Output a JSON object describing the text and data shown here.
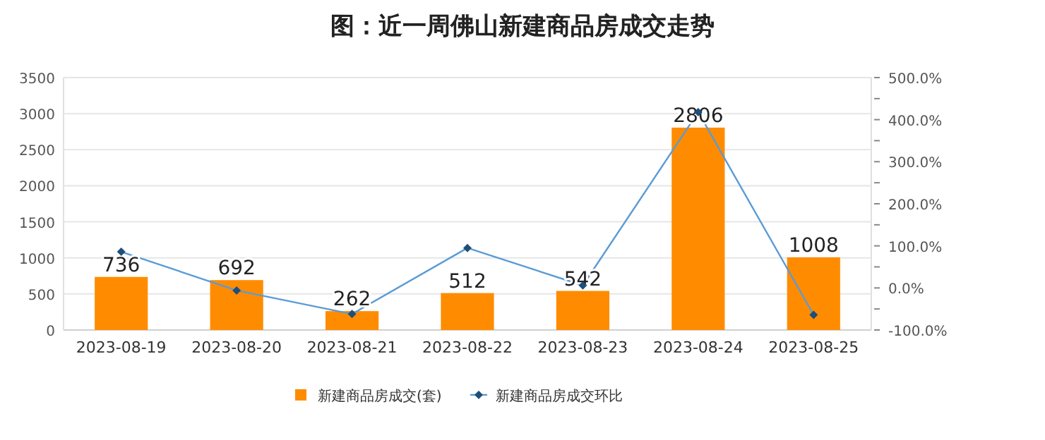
{
  "chart_data": {
    "type": "bar",
    "title": "图：近一周佛山新建商品房成交走势",
    "categories": [
      "2023-08-19",
      "2023-08-20",
      "2023-08-21",
      "2023-08-22",
      "2023-08-23",
      "2023-08-24",
      "2023-08-25"
    ],
    "series": [
      {
        "name": "新建商品房成交(套)",
        "color": "#ff8c00",
        "values": [
          736,
          692,
          262,
          512,
          542,
          2806,
          1008
        ],
        "value_labels": [
          "736",
          "692",
          "262",
          "512",
          "542",
          "2806",
          "1008"
        ]
      },
      {
        "name": "新建商品房成交环比",
        "type": "line",
        "axis": "y2",
        "color": "#5b9bd5",
        "values": [
          86,
          -6,
          -62,
          95,
          6,
          418,
          -64
        ]
      }
    ],
    "ylim": [
      0,
      3500
    ],
    "yticks": [
      0,
      500,
      1000,
      1500,
      2000,
      2500,
      3000,
      3500
    ],
    "y2lim": [
      -100,
      500
    ],
    "y2ticks": [
      {
        "value": -100,
        "label": "-100.0%"
      },
      {
        "value": -50,
        "label": null
      },
      {
        "value": 0,
        "label": "0.0%"
      },
      {
        "value": 50,
        "label": null
      },
      {
        "value": 100,
        "label": "100.0%"
      },
      {
        "value": 150,
        "label": null
      },
      {
        "value": 200,
        "label": "200.0%"
      },
      {
        "value": 250,
        "label": null
      },
      {
        "value": 300,
        "label": "300.0%"
      },
      {
        "value": 350,
        "label": null
      },
      {
        "value": 400,
        "label": "400.0%"
      },
      {
        "value": 450,
        "label": null
      },
      {
        "value": 500,
        "label": "500.0%"
      }
    ],
    "grid": "y",
    "legend": "bottom",
    "marker": "diamond",
    "line_style": "solid"
  }
}
